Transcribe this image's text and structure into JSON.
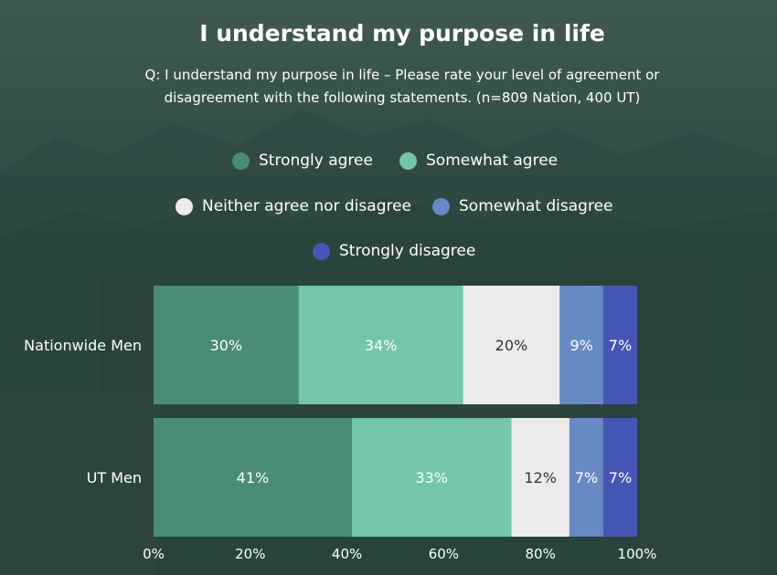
{
  "title": "I understand my purpose in life",
  "subtitle_line1": "Q: I understand my purpose in life – Please rate your level of agreement or",
  "subtitle_line2": "disagreement with the following statements. (n=809 Nation, 400 UT)",
  "colors": {
    "strongly_agree": "#4a8c76",
    "somewhat_agree": "#74c6a8",
    "neither": "#ececec",
    "somewhat_disagree": "#6789c4",
    "strongly_disagree": "#4656b4"
  },
  "legend": [
    {
      "label": "Strongly agree",
      "color": "#4a8c76"
    },
    {
      "label": "Somewhat agree",
      "color": "#74c6a8"
    },
    {
      "label": "Neither agree nor disagree",
      "color": "#ececec"
    },
    {
      "label": "Somewhat disagree",
      "color": "#6789c4"
    },
    {
      "label": "Strongly disagree",
      "color": "#4656b4"
    }
  ],
  "chart_data": {
    "type": "bar",
    "orientation": "horizontal",
    "stacked": true,
    "title": "I understand my purpose in life",
    "categories": [
      "Nationwide Men",
      "UT Men"
    ],
    "series": [
      {
        "name": "Strongly agree",
        "values": [
          30,
          41
        ],
        "labels": [
          "30%",
          "41%"
        ],
        "color": "#4a8c76"
      },
      {
        "name": "Somewhat agree",
        "values": [
          34,
          33
        ],
        "labels": [
          "34%",
          "33%"
        ],
        "color": "#74c6a8"
      },
      {
        "name": "Neither agree nor disagree",
        "values": [
          20,
          12
        ],
        "labels": [
          "20%",
          "12%"
        ],
        "color": "#ececec"
      },
      {
        "name": "Somewhat disagree",
        "values": [
          9,
          7
        ],
        "labels": [
          "9%",
          "7%"
        ],
        "color": "#6789c4"
      },
      {
        "name": "Strongly disagree",
        "values": [
          7,
          7
        ],
        "labels": [
          "7%",
          "7%"
        ],
        "color": "#4656b4"
      }
    ],
    "xlim": [
      0,
      100
    ],
    "xticks": [
      "0%",
      "20%",
      "40%",
      "60%",
      "80%",
      "100%"
    ],
    "legend_position": "top",
    "grid": false
  }
}
